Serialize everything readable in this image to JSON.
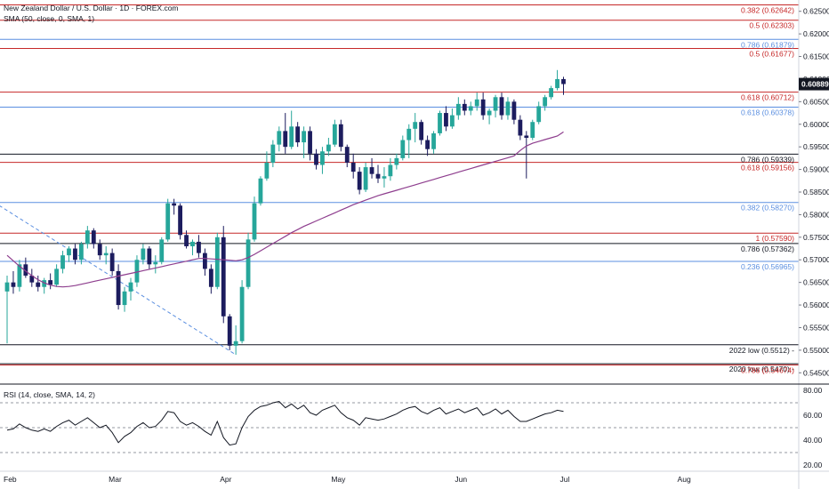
{
  "header": {
    "title": "New Zealand Dollar / U.S. Dollar · 1D · FOREX.com",
    "sma_label": "SMA (50, close, 0, SMA, 1)",
    "rsi_label": "RSI (14, close, SMA, 14, 2)"
  },
  "colors": {
    "up": "#26a69a",
    "down": "#1c1c5e",
    "sma": "#8e3e8e",
    "fib_red": "#c62828",
    "fib_blue": "#5b8fe0",
    "level_dark": "#131722",
    "trendline": "#5b8fe0",
    "rsi": "#131722"
  },
  "chart_data": {
    "type": "candlestick",
    "symbol": "NZDUSD",
    "timeframe": "1D",
    "ylim": [
      0.5425,
      0.6275
    ],
    "y_ticks": [
      "0.62500",
      "0.62000",
      "0.61500",
      "0.61000",
      "0.60500",
      "0.60000",
      "0.59500",
      "0.59000",
      "0.58500",
      "0.58000",
      "0.57500",
      "0.57000",
      "0.56500",
      "0.56000",
      "0.55500",
      "0.55000",
      "0.54500"
    ],
    "x_ticks": [
      "Feb",
      "Mar",
      "Apr",
      "May",
      "Jun",
      "Jul",
      "Aug"
    ],
    "last_price": "0.60889",
    "candles": [
      [
        0.563,
        0.5665,
        0.5515,
        0.565
      ],
      [
        0.565,
        0.5675,
        0.5625,
        0.564
      ],
      [
        0.564,
        0.57,
        0.563,
        0.569
      ],
      [
        0.569,
        0.5705,
        0.566,
        0.5665
      ],
      [
        0.5665,
        0.568,
        0.564,
        0.565
      ],
      [
        0.565,
        0.5665,
        0.563,
        0.564
      ],
      [
        0.564,
        0.566,
        0.5625,
        0.5655
      ],
      [
        0.5655,
        0.567,
        0.5635,
        0.5645
      ],
      [
        0.5645,
        0.569,
        0.564,
        0.568
      ],
      [
        0.568,
        0.572,
        0.567,
        0.571
      ],
      [
        0.571,
        0.573,
        0.5695,
        0.5725
      ],
      [
        0.5725,
        0.5735,
        0.569,
        0.57
      ],
      [
        0.57,
        0.574,
        0.569,
        0.5735
      ],
      [
        0.5735,
        0.5775,
        0.5725,
        0.5765
      ],
      [
        0.5765,
        0.577,
        0.5725,
        0.5735
      ],
      [
        0.5735,
        0.5745,
        0.57,
        0.571
      ],
      [
        0.571,
        0.573,
        0.569,
        0.5715
      ],
      [
        0.5715,
        0.5725,
        0.5665,
        0.5675
      ],
      [
        0.5675,
        0.569,
        0.559,
        0.56
      ],
      [
        0.56,
        0.564,
        0.5585,
        0.563
      ],
      [
        0.563,
        0.566,
        0.561,
        0.565
      ],
      [
        0.565,
        0.571,
        0.564,
        0.57
      ],
      [
        0.57,
        0.5735,
        0.569,
        0.5725
      ],
      [
        0.5725,
        0.573,
        0.568,
        0.569
      ],
      [
        0.569,
        0.571,
        0.567,
        0.5695
      ],
      [
        0.5695,
        0.575,
        0.569,
        0.5745
      ],
      [
        0.5745,
        0.5835,
        0.574,
        0.5825
      ],
      [
        0.5825,
        0.5835,
        0.58,
        0.582
      ],
      [
        0.582,
        0.5825,
        0.5745,
        0.5755
      ],
      [
        0.5755,
        0.5765,
        0.5725,
        0.573
      ],
      [
        0.573,
        0.5745,
        0.571,
        0.574
      ],
      [
        0.574,
        0.5755,
        0.5705,
        0.5715
      ],
      [
        0.5715,
        0.5725,
        0.5665,
        0.568
      ],
      [
        0.568,
        0.569,
        0.5625,
        0.564
      ],
      [
        0.564,
        0.576,
        0.5635,
        0.575
      ],
      [
        0.575,
        0.5775,
        0.556,
        0.5575
      ],
      [
        0.5575,
        0.558,
        0.55,
        0.551
      ],
      [
        0.551,
        0.5555,
        0.549,
        0.552
      ],
      [
        0.552,
        0.5655,
        0.5515,
        0.564
      ],
      [
        0.564,
        0.576,
        0.5635,
        0.5745
      ],
      [
        0.5745,
        0.584,
        0.574,
        0.5825
      ],
      [
        0.5825,
        0.5885,
        0.582,
        0.588
      ],
      [
        0.588,
        0.594,
        0.5875,
        0.5915
      ],
      [
        0.5915,
        0.5965,
        0.5905,
        0.5955
      ],
      [
        0.5955,
        0.5995,
        0.594,
        0.5985
      ],
      [
        0.5985,
        0.6025,
        0.5935,
        0.595
      ],
      [
        0.595,
        0.603,
        0.5945,
        0.5995
      ],
      [
        0.5995,
        0.6005,
        0.595,
        0.596
      ],
      [
        0.596,
        0.5995,
        0.5925,
        0.5985
      ],
      [
        0.5985,
        0.5995,
        0.592,
        0.5935
      ],
      [
        0.5935,
        0.5945,
        0.59,
        0.591
      ],
      [
        0.591,
        0.595,
        0.589,
        0.594
      ],
      [
        0.594,
        0.597,
        0.593,
        0.5955
      ],
      [
        0.5955,
        0.601,
        0.595,
        0.6
      ],
      [
        0.6,
        0.601,
        0.594,
        0.595
      ],
      [
        0.595,
        0.5955,
        0.5905,
        0.5915
      ],
      [
        0.5915,
        0.5935,
        0.588,
        0.5895
      ],
      [
        0.5895,
        0.5905,
        0.5845,
        0.5855
      ],
      [
        0.5855,
        0.5915,
        0.585,
        0.5905
      ],
      [
        0.5905,
        0.5925,
        0.588,
        0.589
      ],
      [
        0.589,
        0.591,
        0.587,
        0.588
      ],
      [
        0.588,
        0.5905,
        0.586,
        0.5885
      ],
      [
        0.5885,
        0.5925,
        0.5875,
        0.591
      ],
      [
        0.591,
        0.5935,
        0.59,
        0.5925
      ],
      [
        0.5925,
        0.5975,
        0.592,
        0.5965
      ],
      [
        0.5965,
        0.6,
        0.5925,
        0.599
      ],
      [
        0.599,
        0.6025,
        0.596,
        0.6005
      ],
      [
        0.6005,
        0.601,
        0.5955,
        0.5965
      ],
      [
        0.5965,
        0.5975,
        0.593,
        0.5945
      ],
      [
        0.5945,
        0.5985,
        0.5935,
        0.598
      ],
      [
        0.598,
        0.603,
        0.5975,
        0.6025
      ],
      [
        0.6025,
        0.604,
        0.5985,
        0.5995
      ],
      [
        0.5995,
        0.6035,
        0.599,
        0.602
      ],
      [
        0.602,
        0.606,
        0.601,
        0.6045
      ],
      [
        0.6045,
        0.6055,
        0.602,
        0.603
      ],
      [
        0.603,
        0.605,
        0.602,
        0.604
      ],
      [
        0.604,
        0.607,
        0.603,
        0.6055
      ],
      [
        0.6055,
        0.607,
        0.601,
        0.602
      ],
      [
        0.602,
        0.6035,
        0.6,
        0.603
      ],
      [
        0.603,
        0.6065,
        0.6015,
        0.606
      ],
      [
        0.606,
        0.607,
        0.601,
        0.602
      ],
      [
        0.602,
        0.606,
        0.601,
        0.605
      ],
      [
        0.605,
        0.6055,
        0.6,
        0.601
      ],
      [
        0.601,
        0.602,
        0.5965,
        0.5975
      ],
      [
        0.5975,
        0.5985,
        0.588,
        0.597
      ],
      [
        0.597,
        0.601,
        0.5965,
        0.6005
      ],
      [
        0.6005,
        0.605,
        0.6,
        0.604
      ],
      [
        0.604,
        0.6065,
        0.603,
        0.606
      ],
      [
        0.606,
        0.6085,
        0.6055,
        0.608
      ],
      [
        0.608,
        0.612,
        0.6075,
        0.61
      ],
      [
        0.61,
        0.6105,
        0.6065,
        0.6089
      ]
    ],
    "sma50": {
      "name": "SMA (50, close, 0, SMA, 1)",
      "start_index": 0,
      "values": [
        0.571,
        0.5698,
        0.5686,
        0.5675,
        0.5665,
        0.5656,
        0.5649,
        0.5644,
        0.5641,
        0.564,
        0.5641,
        0.5643,
        0.5646,
        0.5649,
        0.5652,
        0.5655,
        0.5658,
        0.5661,
        0.5664,
        0.5667,
        0.567,
        0.5673,
        0.5676,
        0.5679,
        0.5682,
        0.5685,
        0.5688,
        0.5691,
        0.5694,
        0.5697,
        0.57,
        0.5703,
        0.5703,
        0.5702,
        0.5701,
        0.57,
        0.5699,
        0.5698,
        0.57,
        0.5705,
        0.5712,
        0.572,
        0.5728,
        0.5736,
        0.5744,
        0.5752,
        0.576,
        0.5767,
        0.5774,
        0.578,
        0.5786,
        0.5792,
        0.5798,
        0.5804,
        0.581,
        0.5816,
        0.5822,
        0.5827,
        0.5832,
        0.5837,
        0.5842,
        0.5846,
        0.585,
        0.5854,
        0.5858,
        0.5862,
        0.5866,
        0.587,
        0.5874,
        0.5878,
        0.5882,
        0.5886,
        0.589,
        0.5894,
        0.5898,
        0.5902,
        0.5906,
        0.591,
        0.5914,
        0.5918,
        0.5922,
        0.5926,
        0.593,
        0.5942,
        0.5952,
        0.5958,
        0.5962,
        0.5966,
        0.597,
        0.5974,
        0.5983
      ]
    },
    "trendline": {
      "style": "dashed",
      "from": {
        "index": -3,
        "price": 0.5835
      },
      "to": {
        "index": 37,
        "price": 0.549
      }
    },
    "levels": [
      {
        "label": "0.382 (0.62642)",
        "price": 0.62642,
        "color": "red"
      },
      {
        "label": "0.5 (0.62303)",
        "price": 0.62303,
        "color": "red"
      },
      {
        "label": "0.786 (0.61879)",
        "price": 0.61879,
        "color": "blue"
      },
      {
        "label": "0.5 (0.61677)",
        "price": 0.61677,
        "color": "red"
      },
      {
        "label": "0.618 (0.60712)",
        "price": 0.60712,
        "color": "red"
      },
      {
        "label": "0.618 (0.60378)",
        "price": 0.60378,
        "color": "blue"
      },
      {
        "label": "0.786 (0.59339)",
        "price": 0.59339,
        "color": "dark"
      },
      {
        "label": "0.618 (0.59156)",
        "price": 0.59156,
        "color": "red"
      },
      {
        "label": "0.382 (0.58270)",
        "price": 0.5827,
        "color": "blue"
      },
      {
        "label": "1 (0.57590)",
        "price": 0.5759,
        "color": "red"
      },
      {
        "label": "0.786 (0.57362)",
        "price": 0.57362,
        "color": "dark"
      },
      {
        "label": "0.236 (0.56965)",
        "price": 0.56965,
        "color": "blue"
      },
      {
        "label": "2022 low (0.5512) -",
        "price": 0.5512,
        "color": "dark"
      },
      {
        "label": "2020 low (0.5470) -",
        "price": 0.547,
        "color": "dark"
      },
      {
        "label": "0.786 (0.54674)",
        "price": 0.54674,
        "color": "red"
      }
    ],
    "rsi": {
      "name": "RSI (14, close, SMA, 14, 2)",
      "ylim": [
        15,
        85
      ],
      "y_ticks": [
        "80.00",
        "60.00",
        "40.00",
        "20.00"
      ],
      "bands": [
        70,
        50,
        30
      ],
      "values": [
        48,
        49,
        53,
        50,
        48,
        47,
        49,
        47,
        51,
        54,
        56,
        52,
        55,
        58,
        54,
        50,
        52,
        46,
        38,
        43,
        46,
        51,
        54,
        50,
        51,
        56,
        63,
        62,
        55,
        52,
        54,
        51,
        47,
        44,
        55,
        42,
        36,
        37,
        50,
        59,
        64,
        67,
        68,
        70,
        71,
        66,
        69,
        65,
        68,
        62,
        60,
        64,
        66,
        68,
        62,
        58,
        56,
        52,
        58,
        57,
        56,
        57,
        59,
        61,
        64,
        66,
        67,
        63,
        61,
        64,
        66,
        61,
        63,
        65,
        62,
        64,
        66,
        60,
        62,
        65,
        61,
        64,
        59,
        55,
        55,
        57,
        59,
        61,
        62,
        64,
        63
      ]
    }
  }
}
